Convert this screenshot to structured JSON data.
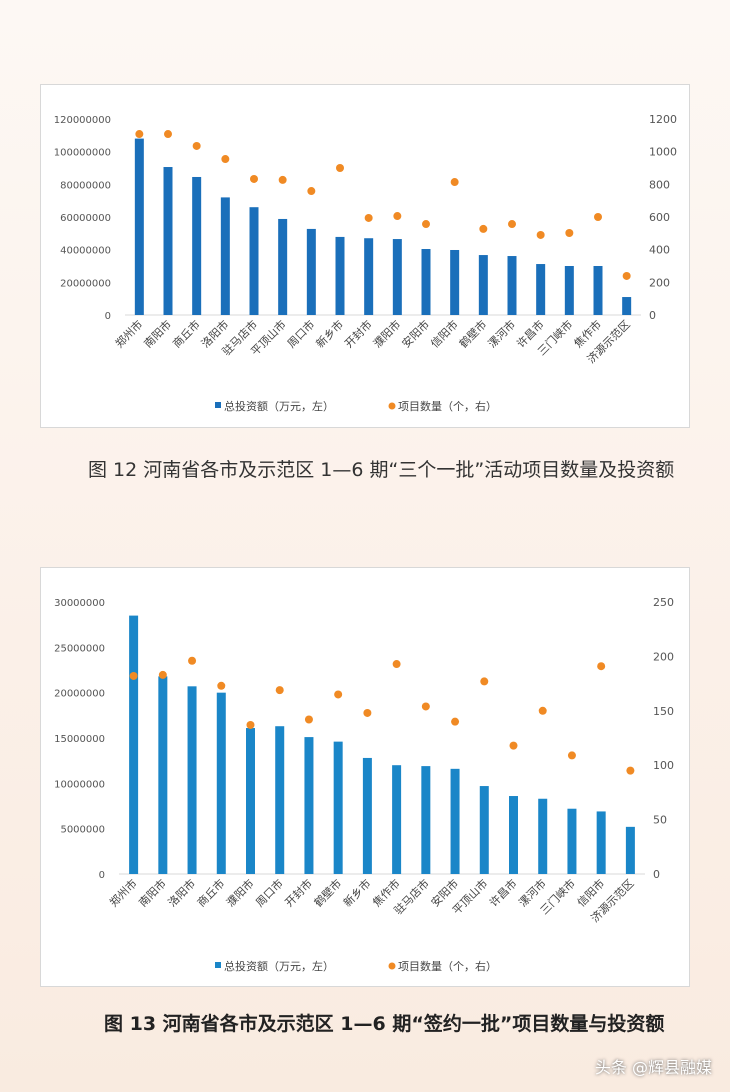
{
  "chart_data": [
    {
      "type": "bar",
      "combo": "bar+scatter-secondary-axis",
      "categories": [
        "郑州市",
        "南阳市",
        "商丘市",
        "洛阳市",
        "驻马店市",
        "平顶山市",
        "周口市",
        "新乡市",
        "开封市",
        "濮阳市",
        "安阳市",
        "信阳市",
        "鹤壁市",
        "漯河市",
        "许昌市",
        "三门峡市",
        "焦作市",
        "济源示范区"
      ],
      "series": [
        {
          "name": "总投资额（万元，左）",
          "axis": "left",
          "kind": "bar",
          "color": "#1a6fba",
          "values": [
            108000000,
            90600000,
            84500000,
            72000000,
            66000000,
            58800000,
            52700000,
            47800000,
            47000000,
            46500000,
            40400000,
            39800000,
            36700000,
            36100000,
            31200000,
            30000000,
            30000000,
            11000000
          ]
        },
        {
          "name": "项目数量（个，右）",
          "axis": "right",
          "kind": "scatter",
          "color": "#f08a24",
          "values": [
            1108,
            1108,
            1035,
            955,
            833,
            827,
            759,
            900,
            594,
            606,
            557,
            814,
            527,
            557,
            490,
            502,
            600,
            239
          ]
        }
      ],
      "ylim_left": [
        0,
        120000000
      ],
      "yticks_left": [
        "0",
        "20000000",
        "40000000",
        "60000000",
        "80000000",
        "100000000",
        "120000000"
      ],
      "ylim_right": [
        0,
        1200
      ],
      "yticks_right": [
        "0",
        "200",
        "400",
        "600",
        "800",
        "1000",
        "1200"
      ],
      "legend": "bottom",
      "grid": false,
      "caption": "图 12  河南省各市及示范区 1—6 期“三个一批”活动项目数量及投资额"
    },
    {
      "type": "bar",
      "combo": "bar+scatter-secondary-axis",
      "categories": [
        "郑州市",
        "南阳市",
        "洛阳市",
        "商丘市",
        "濮阳市",
        "周口市",
        "开封市",
        "鹤壁市",
        "新乡市",
        "焦作市",
        "驻马店市",
        "安阳市",
        "平顶山市",
        "许昌市",
        "漯河市",
        "三门峡市",
        "信阳市",
        "济源示范区"
      ],
      "series": [
        {
          "name": "总投资额（万元，左）",
          "axis": "left",
          "kind": "bar",
          "color": "#1a86c8",
          "values": [
            28500000,
            21800000,
            20700000,
            20000000,
            16100000,
            16300000,
            15100000,
            14600000,
            12800000,
            12000000,
            11900000,
            11600000,
            9700000,
            8600000,
            8300000,
            7200000,
            6900000,
            5200000
          ]
        },
        {
          "name": "项目数量（个，右）",
          "axis": "right",
          "kind": "scatter",
          "color": "#f08a24",
          "values": [
            182,
            183,
            196,
            173,
            137,
            169,
            142,
            165,
            148,
            193,
            154,
            140,
            177,
            118,
            150,
            109,
            191,
            95
          ]
        }
      ],
      "ylim_left": [
        0,
        30000000
      ],
      "yticks_left": [
        "0",
        "5000000",
        "10000000",
        "15000000",
        "20000000",
        "25000000",
        "30000000"
      ],
      "ylim_right": [
        0,
        250
      ],
      "yticks_right": [
        "0",
        "50",
        "100",
        "150",
        "200",
        "250"
      ],
      "legend": "bottom",
      "grid": false,
      "caption": "图 13  河南省各市及示范区 1—6 期“签约一批”项目数量与投资额"
    }
  ],
  "watermark": "头条 @辉县融媒"
}
